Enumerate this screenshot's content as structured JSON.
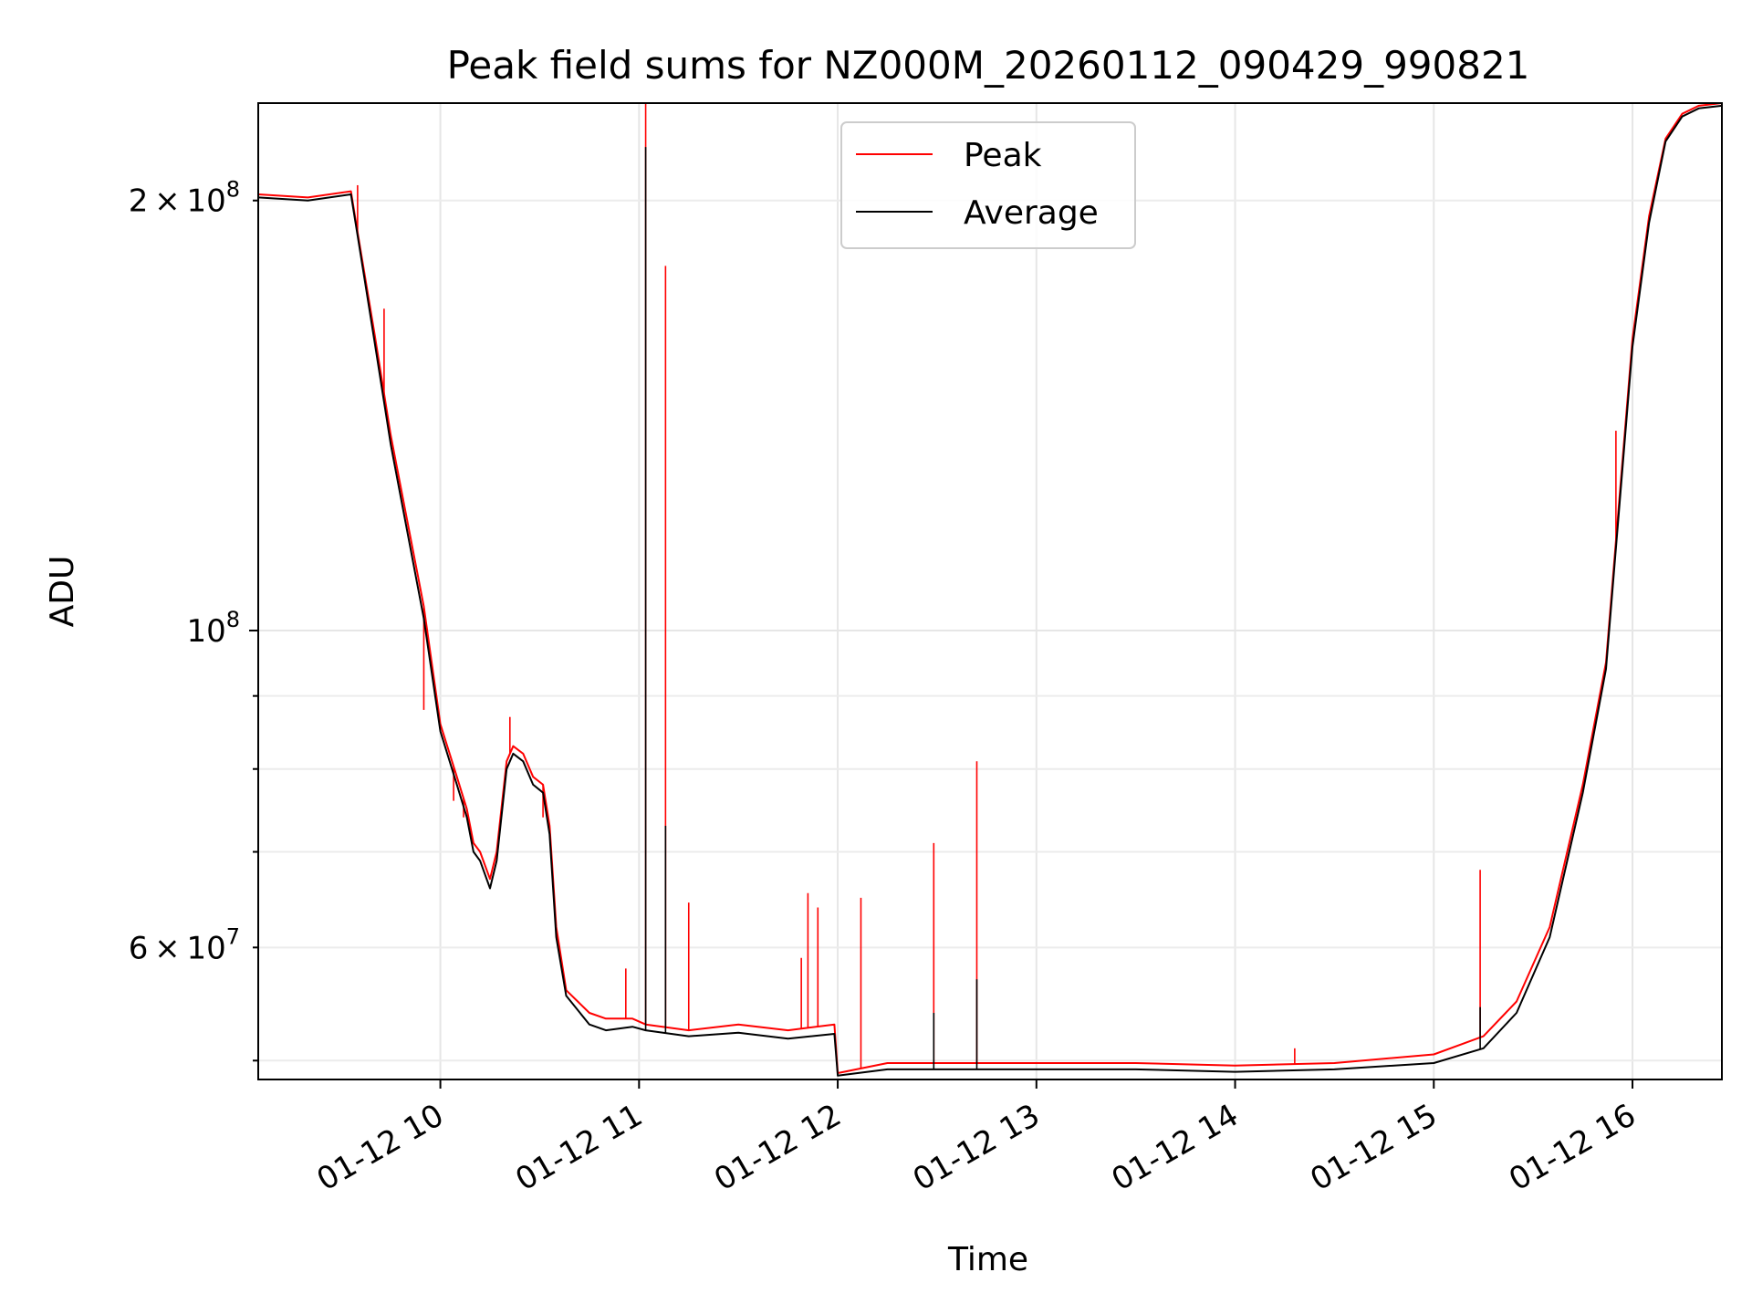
{
  "chart_data": {
    "type": "line",
    "title": "Peak field sums for NZ000M_20260112_090429_990821",
    "xlabel": "Time",
    "ylabel": "ADU",
    "x_axis_type": "datetime",
    "y_scale": "log",
    "xlim": [
      "2026-01-12 09:05",
      "2026-01-12 16:27"
    ],
    "ylim": [
      48500000,
      234000000
    ],
    "grid": true,
    "legend_position": "top-center",
    "x_ticks": [
      {
        "value": "2026-01-12 10:00",
        "label": "01-12 10"
      },
      {
        "value": "2026-01-12 11:00",
        "label": "01-12 11"
      },
      {
        "value": "2026-01-12 12:00",
        "label": "01-12 12"
      },
      {
        "value": "2026-01-12 13:00",
        "label": "01-12 13"
      },
      {
        "value": "2026-01-12 14:00",
        "label": "01-12 14"
      },
      {
        "value": "2026-01-12 15:00",
        "label": "01-12 15"
      },
      {
        "value": "2026-01-12 16:00",
        "label": "01-12 16"
      }
    ],
    "y_ticks_major": [
      {
        "value": 100000000,
        "label_base": "10",
        "label_exp": "8"
      }
    ],
    "y_ticks_minor": [
      {
        "value": 50000000,
        "label_mant": "",
        "label_base": "",
        "label_exp": ""
      },
      {
        "value": 60000000,
        "label_mant": "6",
        "label_base": "10",
        "label_exp": "7"
      },
      {
        "value": 70000000,
        "label_mant": "",
        "label_base": "",
        "label_exp": ""
      },
      {
        "value": 80000000,
        "label_mant": "",
        "label_base": "",
        "label_exp": ""
      },
      {
        "value": 90000000,
        "label_mant": "",
        "label_base": "",
        "label_exp": ""
      },
      {
        "value": 200000000,
        "label_mant": "2",
        "label_base": "10",
        "label_exp": "8"
      }
    ],
    "series": [
      {
        "name": "Peak",
        "color": "#ff0000",
        "x": [
          "2026-01-12 09:05",
          "2026-01-12 09:20",
          "2026-01-12 09:33",
          "2026-01-12 09:35",
          "2026-01-12 09:40",
          "2026-01-12 09:45",
          "2026-01-12 09:55",
          "2026-01-12 10:00",
          "2026-01-12 10:05",
          "2026-01-12 10:08",
          "2026-01-12 10:10",
          "2026-01-12 10:12",
          "2026-01-12 10:15",
          "2026-01-12 10:17",
          "2026-01-12 10:20",
          "2026-01-12 10:22",
          "2026-01-12 10:25",
          "2026-01-12 10:28",
          "2026-01-12 10:31",
          "2026-01-12 10:33",
          "2026-01-12 10:35",
          "2026-01-12 10:38",
          "2026-01-12 10:45",
          "2026-01-12 10:50",
          "2026-01-12 10:58",
          "2026-01-12 11:02",
          "2026-01-12 11:15",
          "2026-01-12 11:30",
          "2026-01-12 11:45",
          "2026-01-12 11:59",
          "2026-01-12 12:00",
          "2026-01-12 12:15",
          "2026-01-12 12:30",
          "2026-01-12 13:00",
          "2026-01-12 13:30",
          "2026-01-12 14:00",
          "2026-01-12 14:30",
          "2026-01-12 15:00",
          "2026-01-12 15:15",
          "2026-01-12 15:25",
          "2026-01-12 15:35",
          "2026-01-12 15:45",
          "2026-01-12 15:52",
          "2026-01-12 16:00",
          "2026-01-12 16:05",
          "2026-01-12 16:10",
          "2026-01-12 16:15",
          "2026-01-12 16:20",
          "2026-01-12 16:27"
        ],
        "y": [
          202000000,
          201000000,
          203000000,
          190000000,
          162000000,
          137000000,
          104000000,
          86000000,
          79000000,
          75000000,
          71000000,
          70000000,
          67000000,
          70000000,
          81000000,
          83000000,
          82000000,
          79000000,
          78000000,
          73000000,
          62000000,
          56000000,
          54000000,
          53500000,
          53500000,
          53000000,
          52500000,
          53000000,
          52500000,
          53000000,
          49000000,
          49800000,
          49800000,
          49800000,
          49800000,
          49600000,
          49800000,
          50500000,
          52000000,
          55000000,
          62000000,
          78000000,
          95000000,
          160000000,
          195000000,
          221000000,
          230000000,
          233000000,
          234000000
        ],
        "spikes": [
          {
            "x": "2026-01-12 09:35",
            "y": 205000000
          },
          {
            "x": "2026-01-12 09:43",
            "y": 168000000
          },
          {
            "x": "2026-01-12 09:55",
            "y": 88000000
          },
          {
            "x": "2026-01-12 10:04",
            "y": 76000000
          },
          {
            "x": "2026-01-12 10:07",
            "y": 74000000
          },
          {
            "x": "2026-01-12 10:21",
            "y": 87000000
          },
          {
            "x": "2026-01-12 10:31",
            "y": 74000000
          },
          {
            "x": "2026-01-12 10:56",
            "y": 58000000
          },
          {
            "x": "2026-01-12 11:02",
            "y": 234000000
          },
          {
            "x": "2026-01-12 11:08",
            "y": 180000000
          },
          {
            "x": "2026-01-12 11:15",
            "y": 64500000
          },
          {
            "x": "2026-01-12 11:49",
            "y": 59000000
          },
          {
            "x": "2026-01-12 11:51",
            "y": 65500000
          },
          {
            "x": "2026-01-12 11:54",
            "y": 64000000
          },
          {
            "x": "2026-01-12 12:07",
            "y": 65000000
          },
          {
            "x": "2026-01-12 12:29",
            "y": 71000000
          },
          {
            "x": "2026-01-12 12:42",
            "y": 81000000
          },
          {
            "x": "2026-01-12 14:18",
            "y": 51000000
          },
          {
            "x": "2026-01-12 15:14",
            "y": 68000000
          },
          {
            "x": "2026-01-12 15:55",
            "y": 138000000
          }
        ]
      },
      {
        "name": "Average",
        "color": "#000000",
        "x": [
          "2026-01-12 09:05",
          "2026-01-12 09:20",
          "2026-01-12 09:33",
          "2026-01-12 09:35",
          "2026-01-12 09:40",
          "2026-01-12 09:45",
          "2026-01-12 09:55",
          "2026-01-12 10:00",
          "2026-01-12 10:05",
          "2026-01-12 10:08",
          "2026-01-12 10:10",
          "2026-01-12 10:12",
          "2026-01-12 10:15",
          "2026-01-12 10:17",
          "2026-01-12 10:20",
          "2026-01-12 10:22",
          "2026-01-12 10:25",
          "2026-01-12 10:28",
          "2026-01-12 10:31",
          "2026-01-12 10:33",
          "2026-01-12 10:35",
          "2026-01-12 10:38",
          "2026-01-12 10:45",
          "2026-01-12 10:50",
          "2026-01-12 10:58",
          "2026-01-12 11:02",
          "2026-01-12 11:15",
          "2026-01-12 11:30",
          "2026-01-12 11:45",
          "2026-01-12 11:59",
          "2026-01-12 12:00",
          "2026-01-12 12:15",
          "2026-01-12 12:30",
          "2026-01-12 13:00",
          "2026-01-12 13:30",
          "2026-01-12 14:00",
          "2026-01-12 14:30",
          "2026-01-12 15:00",
          "2026-01-12 15:15",
          "2026-01-12 15:25",
          "2026-01-12 15:35",
          "2026-01-12 15:45",
          "2026-01-12 15:52",
          "2026-01-12 16:00",
          "2026-01-12 16:05",
          "2026-01-12 16:10",
          "2026-01-12 16:15",
          "2026-01-12 16:20",
          "2026-01-12 16:27"
        ],
        "y": [
          201000000,
          200000000,
          202000000,
          189000000,
          160000000,
          135000000,
          102000000,
          85000000,
          78000000,
          74000000,
          70000000,
          69000000,
          66000000,
          69000000,
          80000000,
          82000000,
          81000000,
          78000000,
          77000000,
          72000000,
          61000000,
          55500000,
          53000000,
          52500000,
          52800000,
          52500000,
          52000000,
          52300000,
          51800000,
          52200000,
          48800000,
          49300000,
          49300000,
          49300000,
          49300000,
          49100000,
          49300000,
          49800000,
          51000000,
          54000000,
          61000000,
          77000000,
          94000000,
          158000000,
          193000000,
          220000000,
          229000000,
          232000000,
          233000000
        ],
        "spikes": [
          {
            "x": "2026-01-12 11:02",
            "y": 218000000
          },
          {
            "x": "2026-01-12 11:08",
            "y": 73000000
          },
          {
            "x": "2026-01-12 12:29",
            "y": 54000000
          },
          {
            "x": "2026-01-12 12:42",
            "y": 57000000
          },
          {
            "x": "2026-01-12 15:14",
            "y": 54500000
          }
        ]
      }
    ]
  }
}
